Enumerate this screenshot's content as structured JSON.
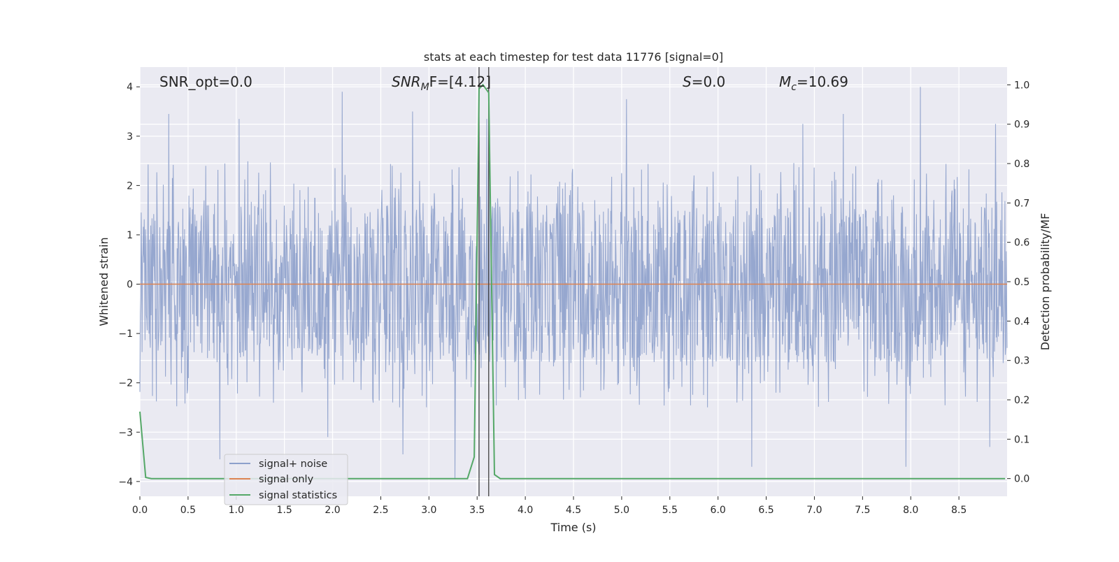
{
  "chart_data": {
    "type": "line",
    "title": "stats at each timestep for test data 11776 [signal=0]",
    "xlabel": "Time (s)",
    "ylabel_left": "Whitened strain",
    "ylabel_right": "Detection probability/MF",
    "xlim": [
      0.0,
      9.0
    ],
    "ylim_left": [
      -4.3,
      4.4
    ],
    "ylim_right": [
      -0.045,
      1.045
    ],
    "x_ticks": [
      0.0,
      0.5,
      1.0,
      1.5,
      2.0,
      2.5,
      3.0,
      3.5,
      4.0,
      4.5,
      5.0,
      5.5,
      6.0,
      6.5,
      7.0,
      7.5,
      8.0,
      8.5
    ],
    "x_tick_labels": [
      "0.0",
      "0.5",
      "1.0",
      "1.5",
      "2.0",
      "2.5",
      "3.0",
      "3.5",
      "4.0",
      "4.5",
      "5.0",
      "5.5",
      "6.0",
      "6.5",
      "7.0",
      "7.5",
      "8.0",
      "8.5"
    ],
    "y_left_ticks": [
      4,
      3,
      2,
      1,
      0,
      -1,
      -2,
      -3,
      -4
    ],
    "y_left_tick_labels": [
      "4",
      "3",
      "2",
      "1",
      "0",
      "−1",
      "−2",
      "−3",
      "−4"
    ],
    "y_right_ticks": [
      1.0,
      0.9,
      0.8,
      0.7,
      0.6,
      0.5,
      0.4,
      0.3,
      0.2,
      0.1,
      0.0
    ],
    "y_right_tick_labels": [
      "1.0",
      "0.9",
      "0.8",
      "0.7",
      "0.6",
      "0.5",
      "0.4",
      "0.3",
      "0.2",
      "0.1",
      "0.0"
    ],
    "grid": true,
    "legend_placement": "lower-left",
    "series": [
      {
        "name": "signal+ noise",
        "color": "#8da0cb",
        "axis": "left",
        "description_values": {
          "typical_envelope": [
            -1.6,
            1.6
          ],
          "peak_spikes": [
            {
              "x": 0.3,
              "y": 3.45
            },
            {
              "x": 1.03,
              "y": 3.35
            },
            {
              "x": 2.1,
              "y": 3.9
            },
            {
              "x": 2.83,
              "y": 3.5
            },
            {
              "x": 3.6,
              "y": 3.35
            },
            {
              "x": 5.05,
              "y": 3.75
            },
            {
              "x": 6.88,
              "y": 3.25
            },
            {
              "x": 7.3,
              "y": 3.45
            },
            {
              "x": 8.1,
              "y": 4.0
            },
            {
              "x": 8.88,
              "y": 3.25
            },
            {
              "x": 0.83,
              "y": -3.55
            },
            {
              "x": 1.95,
              "y": -3.1
            },
            {
              "x": 2.73,
              "y": -3.45
            },
            {
              "x": 3.27,
              "y": -3.95
            },
            {
              "x": 6.35,
              "y": -3.7
            },
            {
              "x": 7.95,
              "y": -3.7
            },
            {
              "x": 8.82,
              "y": -3.3
            }
          ]
        }
      },
      {
        "name": "signal only",
        "color": "#dd8452",
        "axis": "left",
        "x": [
          0.0,
          9.0
        ],
        "values": [
          0.0,
          0.0
        ]
      },
      {
        "name": "signal statistics",
        "color": "#55a868",
        "axis": "right",
        "x": [
          0.0,
          0.06,
          0.12,
          0.5,
          1.0,
          2.0,
          3.0,
          3.4,
          3.47,
          3.52,
          3.56,
          3.62,
          3.68,
          3.74,
          4.0,
          5.0,
          6.0,
          7.0,
          8.0,
          8.98
        ],
        "values": [
          0.17,
          0.003,
          0.0,
          0.0,
          0.0,
          0.0,
          0.0,
          0.0,
          0.055,
          0.99,
          1.0,
          0.98,
          0.01,
          0.0,
          0.0,
          0.0,
          0.0,
          0.0,
          0.0,
          0.0
        ]
      }
    ],
    "vertical_lines": [
      3.52,
      3.62
    ],
    "annotations": [
      {
        "text": "SNR_opt=0.0",
        "x": 0.19
      },
      {
        "text": "SNR_MF=[4.12]",
        "x": 2.6
      },
      {
        "text": "S=0.0",
        "x": 5.6
      },
      {
        "text": "M_c=10.69",
        "x": 6.6
      }
    ]
  },
  "annotations_text": {
    "snr_opt": "SNR_opt=0.0",
    "snr_mf_main": "SNR",
    "snr_mf_sub": "M",
    "snr_mf_rest": "F=[4.12]",
    "s_italic": "S",
    "s_rest": "=0.0",
    "mc_main": "M",
    "mc_sub": "c",
    "mc_rest": "=10.69"
  }
}
